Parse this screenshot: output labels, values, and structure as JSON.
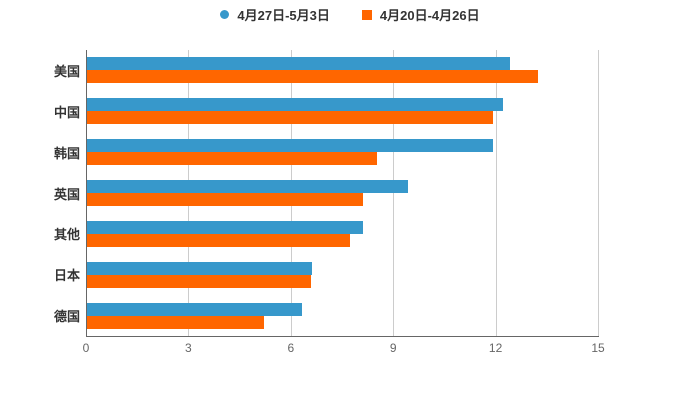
{
  "chart_data": {
    "type": "bar",
    "orientation": "horizontal",
    "title": "",
    "xlabel": "",
    "ylabel": "",
    "categories": [
      "美国",
      "中国",
      "韩国",
      "英国",
      "其他",
      "日本",
      "德国"
    ],
    "series": [
      {
        "name": "4月27日-5月3日",
        "color": "#3798cb",
        "marker": "circle",
        "values": [
          12.4,
          12.2,
          11.9,
          9.4,
          8.1,
          6.6,
          6.3
        ]
      },
      {
        "name": "4月20日-4月26日",
        "color": "#ff6600",
        "marker": "square",
        "values": [
          13.2,
          11.9,
          8.5,
          8.1,
          7.7,
          6.55,
          5.2
        ]
      }
    ],
    "xlim": [
      0,
      15
    ],
    "xticks": [
      0,
      3,
      6,
      9,
      12,
      15
    ],
    "xtick_labels": [
      "0",
      "3",
      "6",
      "9",
      "12",
      "15"
    ],
    "grid": true,
    "legend_position": "top",
    "colors": {
      "grid": "#cccccc",
      "axis": "#666666",
      "tick_label": "#666666",
      "category_label": "#333333",
      "legend_label": "#333333",
      "background": "#ffffff"
    }
  }
}
